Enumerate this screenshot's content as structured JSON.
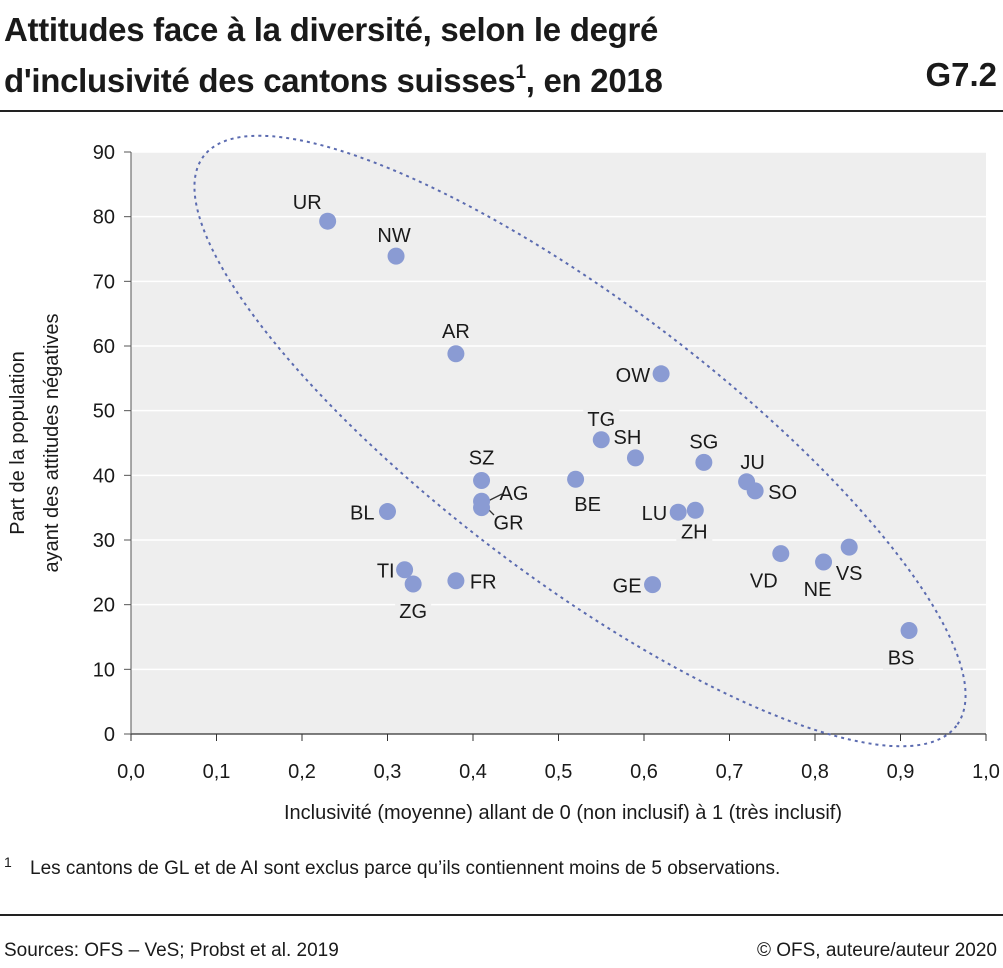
{
  "header": {
    "title_main": "Attitudes face à la diversité, selon le degré d'inclusivité des cantons suisses",
    "title_sup": "1",
    "title_end": ", en 2018",
    "chart_id": "G7.2"
  },
  "chart_data": {
    "type": "scatter",
    "title": "",
    "xlabel": "Inclusivité (moyenne) allant de 0 (non inclusif) à 1 (très inclusif)",
    "ylabel": [
      "Part de la population",
      "ayant des attitudes négatives"
    ],
    "xlim": [
      0,
      1
    ],
    "ylim": [
      0,
      90
    ],
    "xticks": [
      "0,0",
      "0,1",
      "0,2",
      "0,3",
      "0,4",
      "0,5",
      "0,6",
      "0,7",
      "0,8",
      "0,9",
      "1,0"
    ],
    "yticks": [
      "0",
      "10",
      "20",
      "30",
      "40",
      "50",
      "60",
      "70",
      "80",
      "90"
    ],
    "grid": "horizontal",
    "point_color": "#8a9bd3",
    "ellipse_color": "#5b6bb0",
    "points": [
      {
        "label": "UR",
        "x": 0.23,
        "y": 79.3
      },
      {
        "label": "NW",
        "x": 0.31,
        "y": 73.9
      },
      {
        "label": "AR",
        "x": 0.38,
        "y": 58.8
      },
      {
        "label": "OW",
        "x": 0.62,
        "y": 55.7
      },
      {
        "label": "TG",
        "x": 0.55,
        "y": 45.5
      },
      {
        "label": "SH",
        "x": 0.59,
        "y": 42.7
      },
      {
        "label": "SG",
        "x": 0.67,
        "y": 42.0
      },
      {
        "label": "SZ",
        "x": 0.41,
        "y": 39.2
      },
      {
        "label": "BE",
        "x": 0.52,
        "y": 39.4
      },
      {
        "label": "JU",
        "x": 0.72,
        "y": 39.0
      },
      {
        "label": "SO",
        "x": 0.73,
        "y": 37.6
      },
      {
        "label": "AG",
        "x": 0.41,
        "y": 36.0
      },
      {
        "label": "GR",
        "x": 0.41,
        "y": 35.0
      },
      {
        "label": "BL",
        "x": 0.3,
        "y": 34.4
      },
      {
        "label": "LU",
        "x": 0.64,
        "y": 34.3
      },
      {
        "label": "ZH",
        "x": 0.66,
        "y": 34.6
      },
      {
        "label": "VD",
        "x": 0.76,
        "y": 27.9
      },
      {
        "label": "VS",
        "x": 0.84,
        "y": 28.9
      },
      {
        "label": "NE",
        "x": 0.81,
        "y": 26.6
      },
      {
        "label": "TI",
        "x": 0.32,
        "y": 25.4
      },
      {
        "label": "ZG",
        "x": 0.33,
        "y": 23.2
      },
      {
        "label": "FR",
        "x": 0.38,
        "y": 23.7
      },
      {
        "label": "GE",
        "x": 0.61,
        "y": 23.1
      },
      {
        "label": "BS",
        "x": 0.91,
        "y": 16.0
      }
    ]
  },
  "footnote": {
    "number": "1",
    "text": "Les cantons de GL et de AI sont exclus parce qu’ils contiennent moins de 5 observations."
  },
  "footer": {
    "source": "Sources: OFS – VeS; Probst et al. 2019",
    "copyright": "© OFS, auteure/auteur 2020"
  }
}
